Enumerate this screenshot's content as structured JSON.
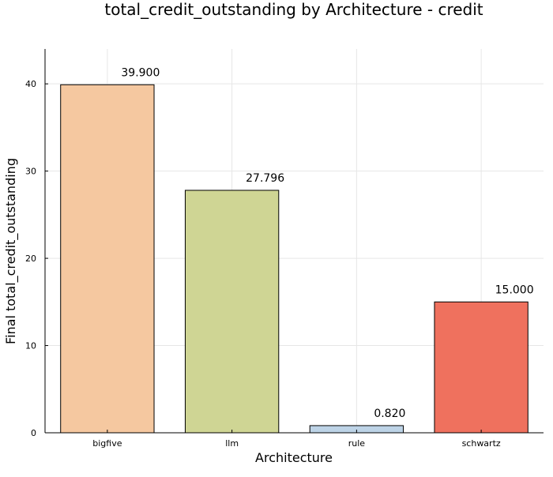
{
  "chart_data": {
    "type": "bar",
    "title": "total_credit_outstanding by Architecture - credit",
    "xlabel": "Architecture",
    "ylabel": "Final total_credit_outstanding",
    "categories": [
      "bigfive",
      "llm",
      "rule",
      "schwartz"
    ],
    "values": [
      39.9,
      27.796,
      0.82,
      15.0
    ],
    "data_labels": [
      "39.900",
      "27.796",
      "0.820",
      "15.000"
    ],
    "bar_colors": [
      "#f5c8a0",
      "#cfd594",
      "#bdd3e6",
      "#ef715e"
    ],
    "yticks": [
      0,
      10,
      20,
      30,
      40
    ],
    "ylim": [
      0,
      44
    ],
    "grid": true,
    "legend": "none"
  }
}
